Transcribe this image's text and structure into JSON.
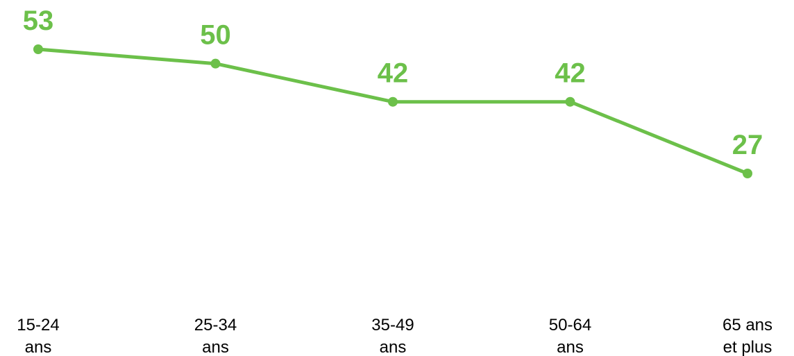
{
  "chart_data": {
    "type": "line",
    "title": "",
    "xlabel": "",
    "ylabel": "",
    "categories": [
      [
        "15-24",
        "ans"
      ],
      [
        "25-34",
        "ans"
      ],
      [
        "35-49",
        "ans"
      ],
      [
        "50-64",
        "ans"
      ],
      [
        "65 ans",
        "et plus"
      ]
    ],
    "series": [
      {
        "values": [
          53,
          50,
          42,
          42,
          27
        ]
      }
    ],
    "ylim": [
      0,
      60
    ],
    "grid": false,
    "legend": "none",
    "data_labels": true,
    "colors": {
      "line": "#6cc04a",
      "label": "#6cc04a"
    }
  }
}
